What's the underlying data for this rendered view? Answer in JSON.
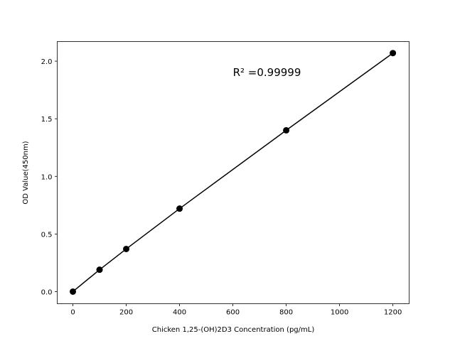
{
  "chart_data": {
    "type": "line",
    "title": "",
    "xlabel": "Chicken 1,25-(OH)2D3 Concentration (pg/mL)",
    "ylabel": "OD Value(450nm)",
    "xlim": [
      -58.7,
      1261
    ],
    "ylim": [
      -0.105,
      2.17
    ],
    "xticks": [
      0,
      200,
      400,
      600,
      800,
      1000,
      1200
    ],
    "xtick_labels": [
      "0",
      "200",
      "400",
      "600",
      "800",
      "1000",
      "1200"
    ],
    "yticks": [
      0.0,
      0.5,
      1.0,
      1.5,
      2.0
    ],
    "ytick_labels": [
      "0.0",
      "0.5",
      "1.0",
      "1.5",
      "2.0"
    ],
    "grid": false,
    "series": [
      {
        "x": [
          0,
          100,
          200,
          400,
          800,
          1200
        ],
        "y": [
          0.0,
          0.19,
          0.37,
          0.72,
          1.4,
          2.07
        ],
        "color": "#000000",
        "marker": "circle"
      }
    ],
    "annotations": [
      {
        "text": "R² =0.99999",
        "x": 600,
        "y": 1.87
      }
    ]
  }
}
